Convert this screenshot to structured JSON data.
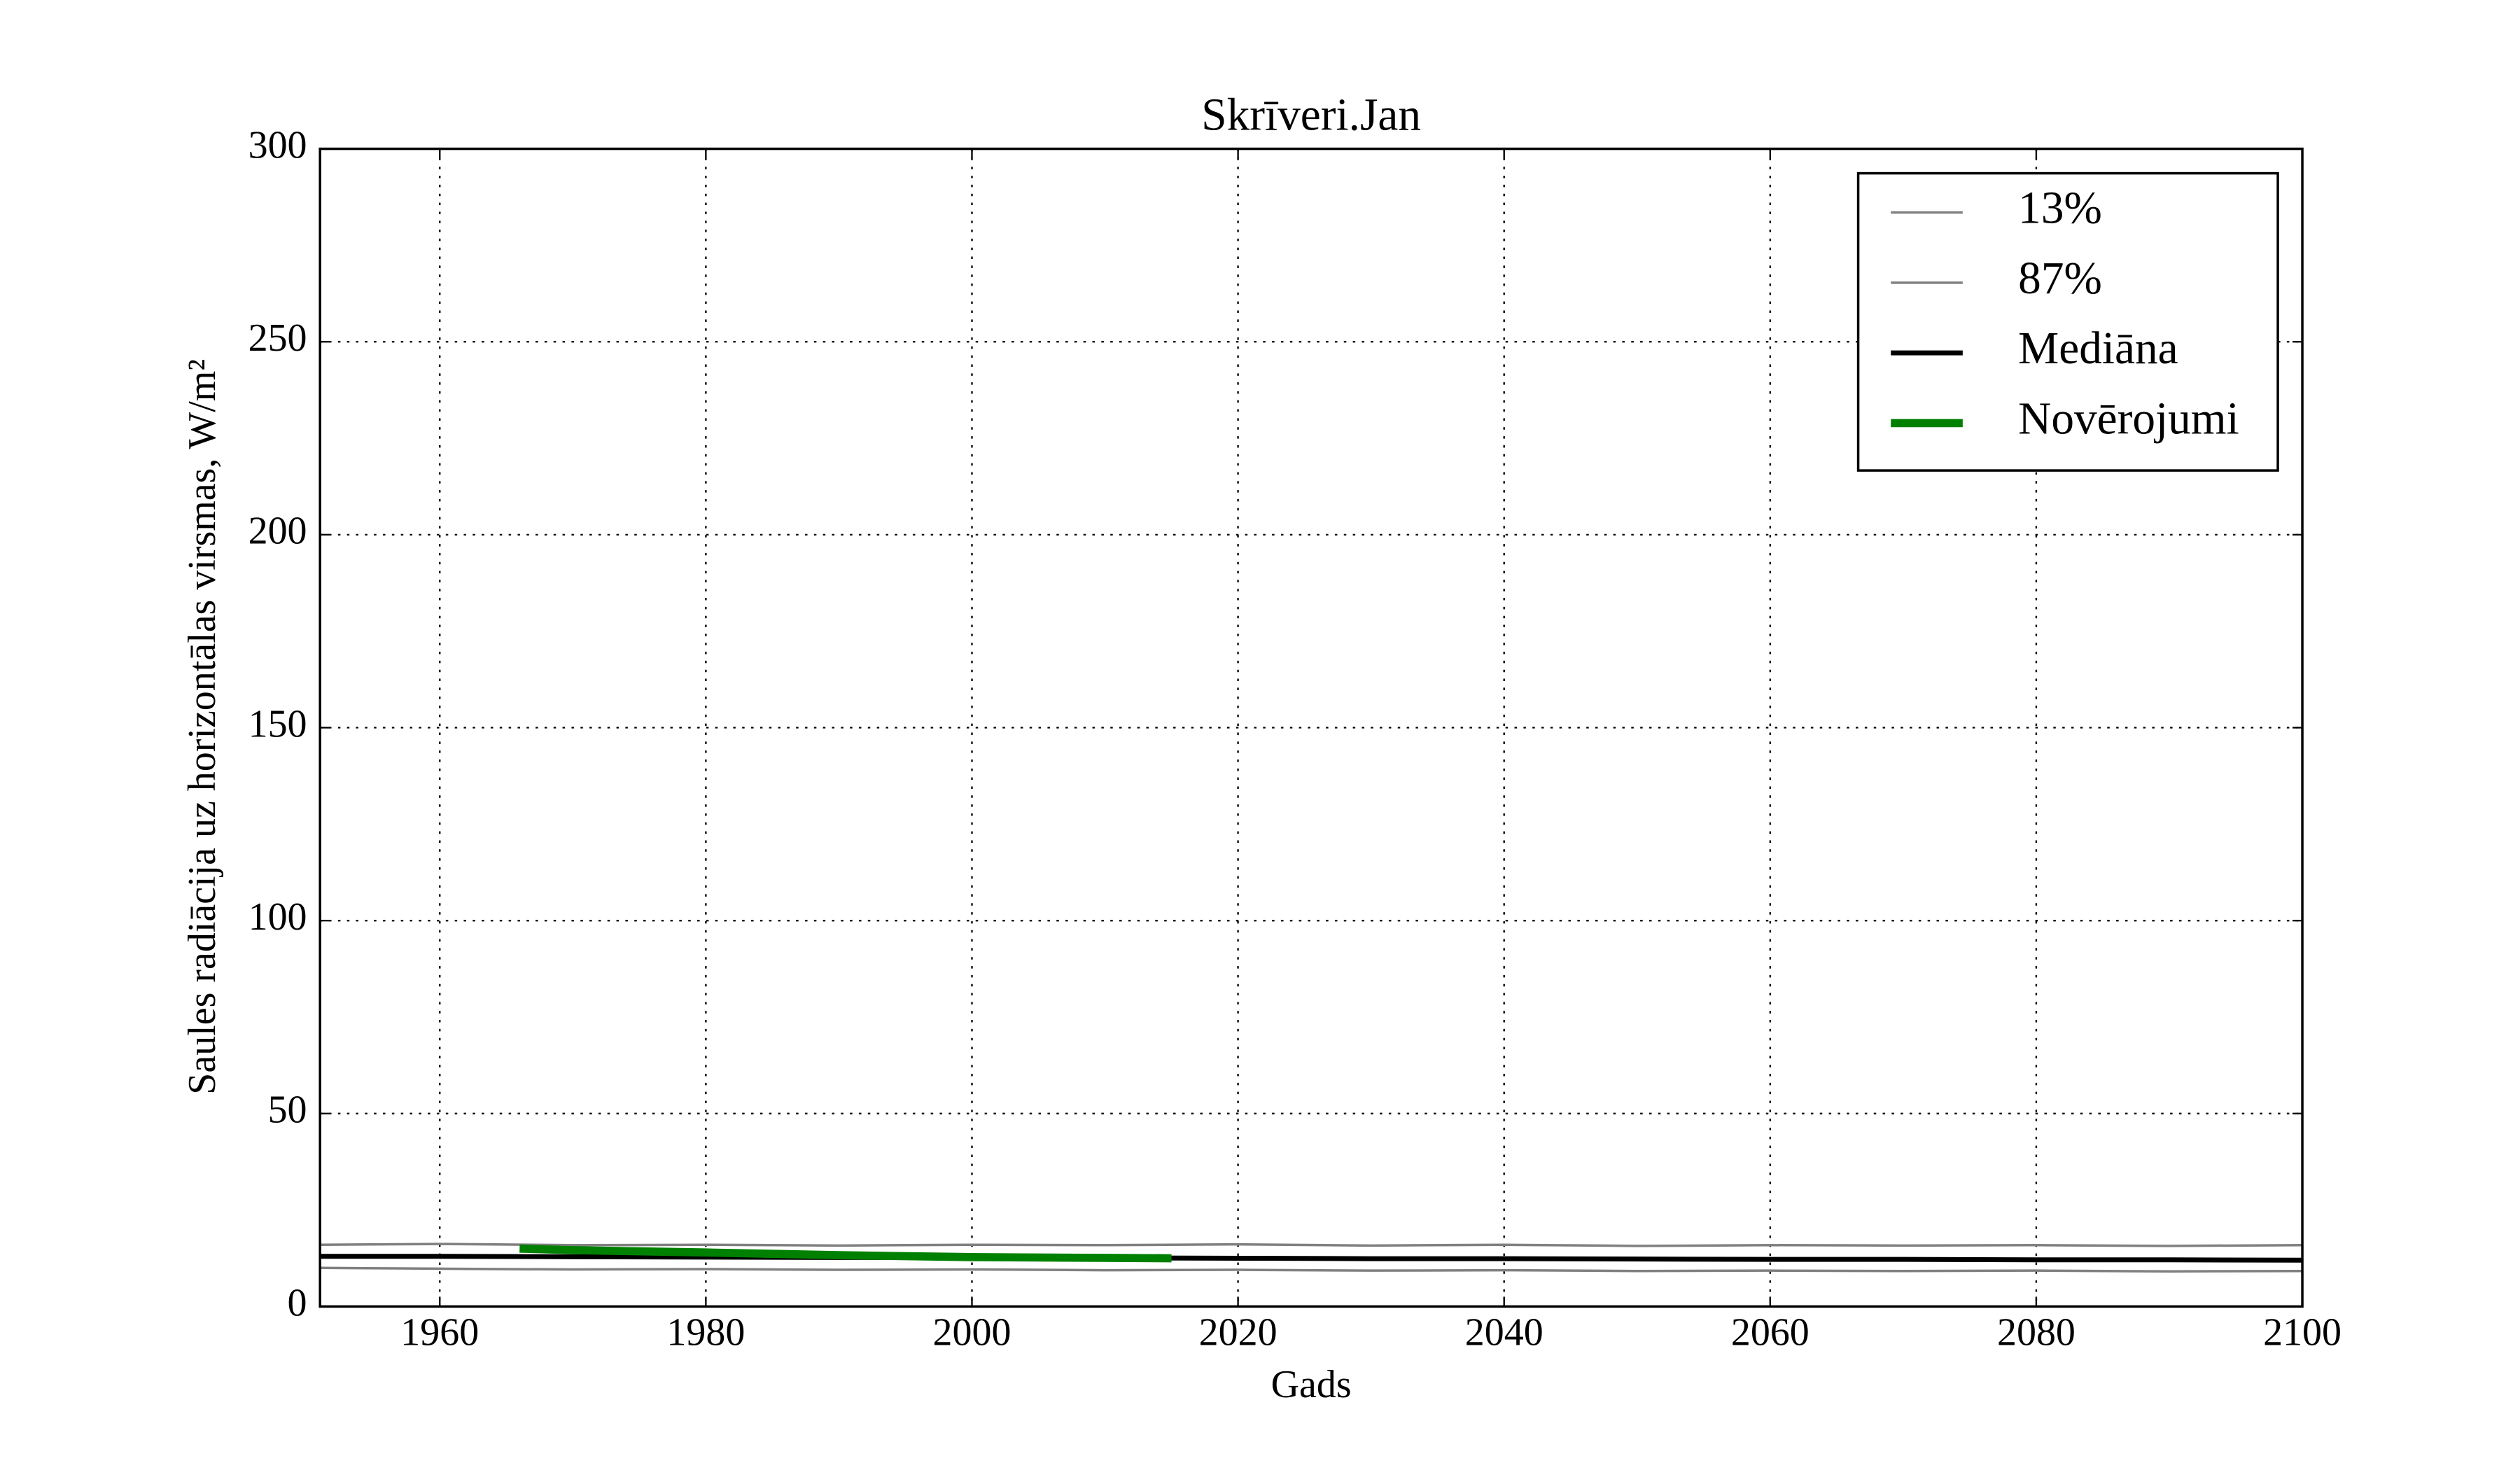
{
  "chart_data": {
    "type": "line",
    "title": "Skrīveri.Jan",
    "xlabel": "Gads",
    "ylabel": "Saules radiācija uz horizontālas virsmas, W/m²",
    "xlim": [
      1951,
      2100
    ],
    "xticks": [
      1960,
      1980,
      2000,
      2020,
      2040,
      2060,
      2080,
      2100
    ],
    "ylim": [
      0,
      300
    ],
    "yticks": [
      0,
      50,
      100,
      150,
      200,
      250,
      300
    ],
    "grid": true,
    "legend": "upper right",
    "series": [
      {
        "name": "13%",
        "color": "#808080",
        "x": [
          1951,
          1960,
          1970,
          1980,
          1990,
          2000,
          2010,
          2020,
          2030,
          2040,
          2050,
          2060,
          2070,
          2080,
          2090,
          2100
        ],
        "values": [
          10,
          9.8,
          9.6,
          9.7,
          9.5,
          9.6,
          9.4,
          9.5,
          9.3,
          9.4,
          9.2,
          9.3,
          9.2,
          9.3,
          9.1,
          9.2
        ]
      },
      {
        "name": "87%",
        "color": "#808080",
        "x": [
          1951,
          1960,
          1970,
          1980,
          1990,
          2000,
          2010,
          2020,
          2030,
          2040,
          2050,
          2060,
          2070,
          2080,
          2090,
          2100
        ],
        "values": [
          16,
          16.2,
          15.9,
          16,
          15.8,
          16,
          15.9,
          16.1,
          15.8,
          16,
          15.7,
          15.9,
          15.8,
          15.9,
          15.7,
          15.9
        ]
      },
      {
        "name": "Mediāna",
        "color": "#000000",
        "x": [
          1951,
          1960,
          1970,
          1980,
          1990,
          2000,
          2010,
          2020,
          2030,
          2040,
          2050,
          2060,
          2070,
          2080,
          2090,
          2100
        ],
        "values": [
          13,
          13,
          12.9,
          12.8,
          12.7,
          12.7,
          12.6,
          12.5,
          12.4,
          12.4,
          12.3,
          12.2,
          12.2,
          12.1,
          12.1,
          12
        ]
      },
      {
        "name": "Novērojumi",
        "color": "#008000",
        "x": [
          1966,
          1970,
          1980,
          1990,
          2000,
          2010,
          2015
        ],
        "values": [
          15,
          14.6,
          14,
          13.3,
          12.8,
          12.6,
          12.5
        ]
      }
    ]
  }
}
